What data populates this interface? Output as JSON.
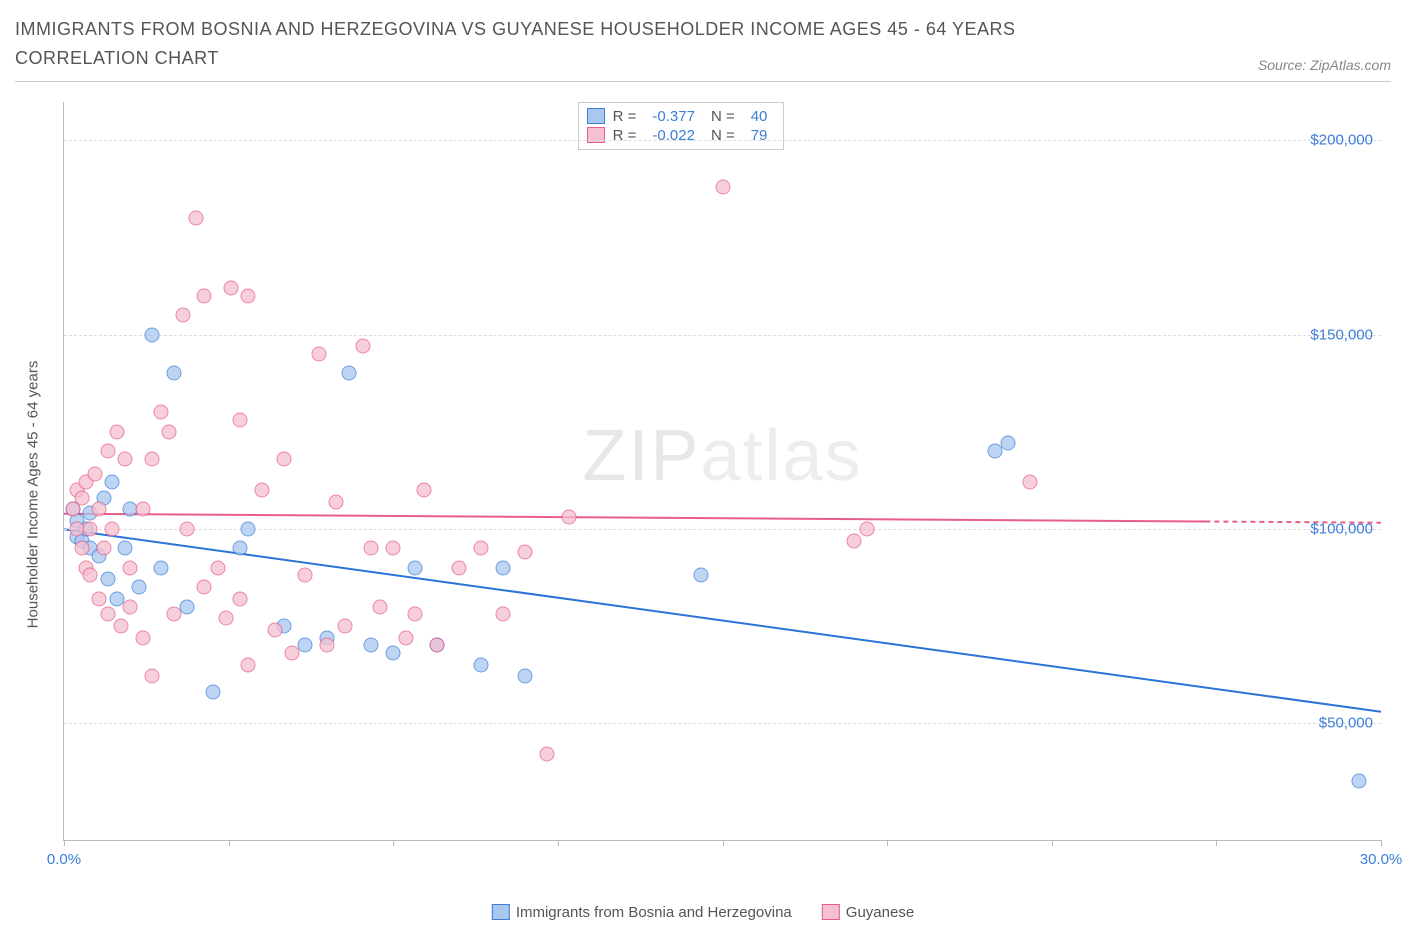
{
  "title": "IMMIGRANTS FROM BOSNIA AND HERZEGOVINA VS GUYANESE HOUSEHOLDER INCOME AGES 45 - 64 YEARS CORRELATION CHART",
  "source": "Source: ZipAtlas.com",
  "watermark_bold": "ZIP",
  "watermark_thin": "atlas",
  "chart": {
    "type": "scatter",
    "xlim": [
      0,
      30
    ],
    "ylim": [
      20000,
      210000
    ],
    "x_ticks": [
      0,
      3.75,
      7.5,
      11.25,
      15,
      18.75,
      22.5,
      26.25,
      30
    ],
    "x_tick_labels": {
      "0": "0.0%",
      "30": "30.0%"
    },
    "y_gridlines": [
      50000,
      100000,
      150000,
      200000
    ],
    "y_tick_labels": {
      "50000": "$50,000",
      "100000": "$100,000",
      "150000": "$150,000",
      "200000": "$200,000"
    },
    "ylabel": "Householder Income Ages 45 - 64 years",
    "background_color": "#ffffff",
    "grid_color": "#dddddd",
    "axis_color": "#bbbbbb",
    "tick_label_color": "#3b7dd8",
    "marker_size": 15,
    "marker_opacity": 0.75,
    "series": [
      {
        "name": "Immigrants from Bosnia and Herzegovina",
        "fill": "#a8c8f0",
        "stroke": "#3b7dd8",
        "line_color": "#2b73d6",
        "line_width": 2,
        "R": "-0.377",
        "N": "40",
        "trend": {
          "x1": 0,
          "y1": 100000,
          "x2": 30,
          "y2": 53000
        },
        "points": [
          [
            0.2,
            105000
          ],
          [
            0.3,
            98000
          ],
          [
            0.3,
            102000
          ],
          [
            0.4,
            97000
          ],
          [
            0.5,
            100000
          ],
          [
            0.6,
            95000
          ],
          [
            0.6,
            104000
          ],
          [
            0.8,
            93000
          ],
          [
            0.9,
            108000
          ],
          [
            1.0,
            87000
          ],
          [
            1.1,
            112000
          ],
          [
            1.2,
            82000
          ],
          [
            1.4,
            95000
          ],
          [
            1.5,
            105000
          ],
          [
            1.7,
            85000
          ],
          [
            2.0,
            150000
          ],
          [
            2.2,
            90000
          ],
          [
            2.5,
            140000
          ],
          [
            2.8,
            80000
          ],
          [
            3.4,
            58000
          ],
          [
            4.0,
            95000
          ],
          [
            4.2,
            100000
          ],
          [
            5.0,
            75000
          ],
          [
            5.5,
            70000
          ],
          [
            6.0,
            72000
          ],
          [
            6.5,
            140000
          ],
          [
            7.0,
            70000
          ],
          [
            7.5,
            68000
          ],
          [
            8.0,
            90000
          ],
          [
            8.5,
            70000
          ],
          [
            9.5,
            65000
          ],
          [
            10.0,
            90000
          ],
          [
            10.5,
            62000
          ],
          [
            14.5,
            88000
          ],
          [
            21.2,
            120000
          ],
          [
            21.5,
            122000
          ],
          [
            29.5,
            35000
          ]
        ]
      },
      {
        "name": "Guyanese",
        "fill": "#f5c0d0",
        "stroke": "#e85d8a",
        "line_color": "#e85d8a",
        "line_width": 2,
        "R": "-0.022",
        "N": "79",
        "trend": {
          "x1": 0,
          "y1": 104000,
          "x2": 26,
          "y2": 102000
        },
        "trend_dashed_to": 30,
        "points": [
          [
            0.2,
            105000
          ],
          [
            0.3,
            100000
          ],
          [
            0.3,
            110000
          ],
          [
            0.4,
            95000
          ],
          [
            0.4,
            108000
          ],
          [
            0.5,
            90000
          ],
          [
            0.5,
            112000
          ],
          [
            0.6,
            100000
          ],
          [
            0.6,
            88000
          ],
          [
            0.7,
            114000
          ],
          [
            0.8,
            105000
          ],
          [
            0.8,
            82000
          ],
          [
            0.9,
            95000
          ],
          [
            1.0,
            120000
          ],
          [
            1.0,
            78000
          ],
          [
            1.1,
            100000
          ],
          [
            1.2,
            125000
          ],
          [
            1.3,
            75000
          ],
          [
            1.4,
            118000
          ],
          [
            1.5,
            90000
          ],
          [
            1.5,
            80000
          ],
          [
            1.8,
            105000
          ],
          [
            1.8,
            72000
          ],
          [
            2.0,
            62000
          ],
          [
            2.0,
            118000
          ],
          [
            2.2,
            130000
          ],
          [
            2.4,
            125000
          ],
          [
            2.5,
            78000
          ],
          [
            2.7,
            155000
          ],
          [
            2.8,
            100000
          ],
          [
            3.0,
            180000
          ],
          [
            3.2,
            85000
          ],
          [
            3.2,
            160000
          ],
          [
            3.5,
            90000
          ],
          [
            3.7,
            77000
          ],
          [
            3.8,
            162000
          ],
          [
            4.0,
            128000
          ],
          [
            4.0,
            82000
          ],
          [
            4.2,
            65000
          ],
          [
            4.2,
            160000
          ],
          [
            4.5,
            110000
          ],
          [
            4.8,
            74000
          ],
          [
            5.0,
            118000
          ],
          [
            5.2,
            68000
          ],
          [
            5.5,
            88000
          ],
          [
            5.8,
            145000
          ],
          [
            6.0,
            70000
          ],
          [
            6.2,
            107000
          ],
          [
            6.4,
            75000
          ],
          [
            6.8,
            147000
          ],
          [
            7.0,
            95000
          ],
          [
            7.2,
            80000
          ],
          [
            7.5,
            95000
          ],
          [
            7.8,
            72000
          ],
          [
            8.0,
            78000
          ],
          [
            8.2,
            110000
          ],
          [
            8.5,
            70000
          ],
          [
            9.0,
            90000
          ],
          [
            9.5,
            95000
          ],
          [
            10.0,
            78000
          ],
          [
            10.5,
            94000
          ],
          [
            11.0,
            42000
          ],
          [
            11.5,
            103000
          ],
          [
            15.0,
            188000
          ],
          [
            18.0,
            97000
          ],
          [
            18.3,
            100000
          ],
          [
            22.0,
            112000
          ]
        ]
      }
    ],
    "bottom_legend": [
      {
        "swatch_fill": "#a8c8f0",
        "swatch_stroke": "#3b7dd8",
        "label": "Immigrants from Bosnia and Herzegovina"
      },
      {
        "swatch_fill": "#f5c0d0",
        "swatch_stroke": "#e85d8a",
        "label": "Guyanese"
      }
    ]
  }
}
